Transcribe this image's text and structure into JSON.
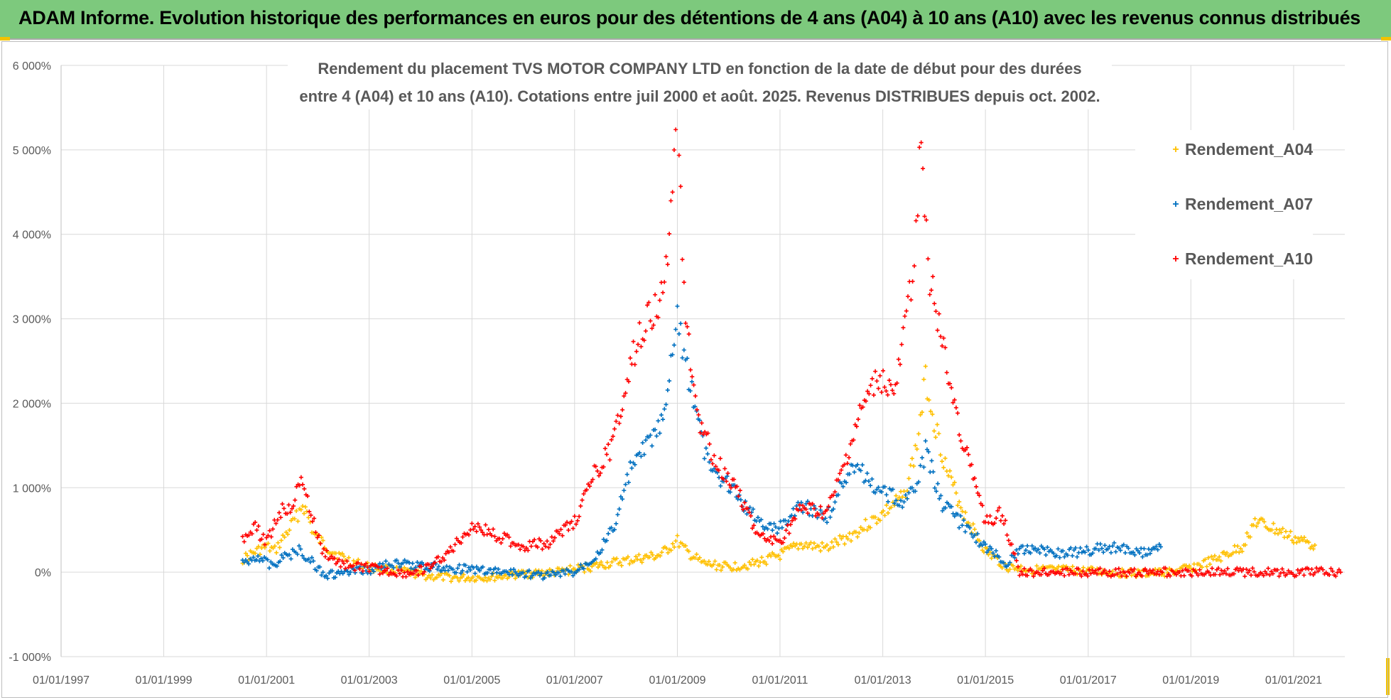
{
  "banner": {
    "title": "ADAM Informe. Evolution historique des performances en euros pour des détentions de 4 ans (A04) à 10 ans (A10) avec les revenus connus distribués"
  },
  "chart_data": {
    "type": "scatter",
    "title_lines": [
      "Rendement du placement TVS MOTOR COMPANY LTD en fonction de la date de début pour des durées",
      "entre 4 (A04) et 10 ans (A10). Cotations entre juil 2000 et août. 2025. Revenus DISTRIBUES depuis oct. 2002."
    ],
    "xlabel": "",
    "ylabel": "",
    "x_ticks": [
      "01/01/1997",
      "01/01/1999",
      "01/01/2001",
      "01/01/2003",
      "01/01/2005",
      "01/01/2007",
      "01/01/2009",
      "01/01/2011",
      "01/01/2013",
      "01/01/2015",
      "01/01/2017",
      "01/01/2019",
      "01/01/2021"
    ],
    "y_ticks": [
      "-1 000%",
      "0%",
      "1 000%",
      "2 000%",
      "3 000%",
      "4 000%",
      "5 000%",
      "6 000%"
    ],
    "xlim": [
      "1997-01-01",
      "2021-12-31"
    ],
    "ylim": [
      -1000,
      6000
    ],
    "y_unit": "%",
    "grid": true,
    "legend_position": "top-right",
    "series": [
      {
        "name": "Rendement_A04",
        "color": "#ffc000",
        "points": [
          [
            "2000-07-15",
            150
          ],
          [
            "2000-10-01",
            230
          ],
          [
            "2001-01-01",
            300
          ],
          [
            "2001-03-01",
            250
          ],
          [
            "2001-06-01",
            480
          ],
          [
            "2001-08-01",
            650
          ],
          [
            "2001-09-15",
            800
          ],
          [
            "2001-10-15",
            700
          ],
          [
            "2001-12-01",
            450
          ],
          [
            "2002-03-01",
            300
          ],
          [
            "2002-06-01",
            200
          ],
          [
            "2002-09-01",
            120
          ],
          [
            "2003-01-01",
            60
          ],
          [
            "2003-06-01",
            30
          ],
          [
            "2003-10-01",
            0
          ],
          [
            "2004-03-01",
            -50
          ],
          [
            "2004-10-01",
            -70
          ],
          [
            "2005-06-01",
            -60
          ],
          [
            "2006-01-01",
            -20
          ],
          [
            "2006-09-01",
            0
          ],
          [
            "2007-03-01",
            50
          ],
          [
            "2007-09-01",
            100
          ],
          [
            "2008-03-01",
            150
          ],
          [
            "2008-09-01",
            200
          ],
          [
            "2009-01-01",
            370
          ],
          [
            "2009-03-01",
            250
          ],
          [
            "2009-07-01",
            100
          ],
          [
            "2010-01-01",
            60
          ],
          [
            "2010-07-01",
            100
          ],
          [
            "2011-01-01",
            200
          ],
          [
            "2011-06-01",
            330
          ],
          [
            "2011-12-01",
            280
          ],
          [
            "2012-06-01",
            450
          ],
          [
            "2012-12-01",
            650
          ],
          [
            "2013-06-01",
            900
          ],
          [
            "2013-09-01",
            1500
          ],
          [
            "2013-11-01",
            2300
          ],
          [
            "2014-01-01",
            1800
          ],
          [
            "2014-04-01",
            1200
          ],
          [
            "2014-08-01",
            700
          ],
          [
            "2015-01-01",
            250
          ],
          [
            "2015-06-01",
            60
          ],
          [
            "2016-01-01",
            30
          ],
          [
            "2016-09-01",
            20
          ],
          [
            "2017-06-01",
            0
          ],
          [
            "2018-01-01",
            -20
          ],
          [
            "2018-08-01",
            0
          ],
          [
            "2019-01-01",
            50
          ],
          [
            "2019-07-01",
            150
          ],
          [
            "2020-01-01",
            300
          ],
          [
            "2020-04-01",
            600
          ],
          [
            "2020-09-01",
            500
          ],
          [
            "2021-01-01",
            400
          ],
          [
            "2021-06-01",
            320
          ]
        ]
      },
      {
        "name": "Rendement_A07",
        "color": "#0070c0",
        "points": [
          [
            "2000-07-15",
            100
          ],
          [
            "2000-11-01",
            200
          ],
          [
            "2001-02-01",
            80
          ],
          [
            "2001-06-01",
            200
          ],
          [
            "2001-09-01",
            260
          ],
          [
            "2001-12-01",
            100
          ],
          [
            "2002-03-01",
            -40
          ],
          [
            "2002-09-01",
            0
          ],
          [
            "2003-01-01",
            30
          ],
          [
            "2003-06-01",
            100
          ],
          [
            "2004-01-01",
            80
          ],
          [
            "2004-06-01",
            50
          ],
          [
            "2005-01-01",
            30
          ],
          [
            "2005-09-01",
            0
          ],
          [
            "2006-06-01",
            -40
          ],
          [
            "2007-01-01",
            0
          ],
          [
            "2007-06-01",
            200
          ],
          [
            "2007-10-01",
            500
          ],
          [
            "2008-02-01",
            1200
          ],
          [
            "2008-06-01",
            1500
          ],
          [
            "2008-10-01",
            1800
          ],
          [
            "2009-01-01",
            3050
          ],
          [
            "2009-03-01",
            2500
          ],
          [
            "2009-07-01",
            1500
          ],
          [
            "2009-10-01",
            1100
          ],
          [
            "2010-01-01",
            1050
          ],
          [
            "2010-06-01",
            700
          ],
          [
            "2010-12-01",
            500
          ],
          [
            "2011-06-01",
            800
          ],
          [
            "2011-12-01",
            650
          ],
          [
            "2012-06-01",
            1300
          ],
          [
            "2012-12-01",
            950
          ],
          [
            "2013-06-01",
            850
          ],
          [
            "2013-09-01",
            1000
          ],
          [
            "2013-11-01",
            1450
          ],
          [
            "2014-03-01",
            800
          ],
          [
            "2014-09-01",
            500
          ],
          [
            "2015-01-01",
            300
          ],
          [
            "2015-06-01",
            100
          ],
          [
            "2015-09-01",
            250
          ],
          [
            "2016-01-01",
            300
          ],
          [
            "2016-06-01",
            220
          ],
          [
            "2017-01-01",
            250
          ],
          [
            "2017-06-01",
            300
          ],
          [
            "2018-01-01",
            220
          ],
          [
            "2018-06-01",
            300
          ]
        ]
      },
      {
        "name": "Rendement_A10",
        "color": "#ff0000",
        "points": [
          [
            "2000-07-15",
            400
          ],
          [
            "2000-10-01",
            550
          ],
          [
            "2001-01-01",
            350
          ],
          [
            "2001-04-01",
            700
          ],
          [
            "2001-07-01",
            800
          ],
          [
            "2001-09-15",
            1100
          ],
          [
            "2001-11-01",
            750
          ],
          [
            "2002-02-01",
            250
          ],
          [
            "2002-06-01",
            100
          ],
          [
            "2003-01-01",
            50
          ],
          [
            "2003-06-01",
            0
          ],
          [
            "2003-10-01",
            -20
          ],
          [
            "2004-03-01",
            50
          ],
          [
            "2004-08-01",
            250
          ],
          [
            "2005-01-01",
            550
          ],
          [
            "2005-06-01",
            450
          ],
          [
            "2006-01-01",
            300
          ],
          [
            "2006-07-01",
            350
          ],
          [
            "2007-01-01",
            600
          ],
          [
            "2007-06-01",
            1200
          ],
          [
            "2007-10-01",
            1500
          ],
          [
            "2008-02-01",
            2500
          ],
          [
            "2008-06-01",
            3000
          ],
          [
            "2008-10-01",
            3300
          ],
          [
            "2009-01-01",
            5350
          ],
          [
            "2009-03-01",
            3000
          ],
          [
            "2009-06-01",
            1800
          ],
          [
            "2009-10-01",
            1300
          ],
          [
            "2010-03-01",
            1000
          ],
          [
            "2010-08-01",
            400
          ],
          [
            "2011-01-01",
            350
          ],
          [
            "2011-06-01",
            750
          ],
          [
            "2011-12-01",
            700
          ],
          [
            "2012-03-01",
            1100
          ],
          [
            "2012-08-01",
            1900
          ],
          [
            "2012-12-01",
            2300
          ],
          [
            "2013-04-01",
            2100
          ],
          [
            "2013-08-01",
            3500
          ],
          [
            "2013-10-01",
            5100
          ],
          [
            "2013-12-01",
            3500
          ],
          [
            "2014-04-01",
            2400
          ],
          [
            "2014-08-01",
            1500
          ],
          [
            "2015-01-01",
            600
          ],
          [
            "2015-05-01",
            700
          ],
          [
            "2015-09-01",
            0
          ],
          [
            "2016-06-01",
            0
          ],
          [
            "2017-06-01",
            0
          ],
          [
            "2018-06-01",
            0
          ],
          [
            "2019-06-01",
            0
          ],
          [
            "2020-06-01",
            0
          ],
          [
            "2021-06-01",
            0
          ],
          [
            "2021-12-01",
            0
          ]
        ]
      }
    ]
  }
}
